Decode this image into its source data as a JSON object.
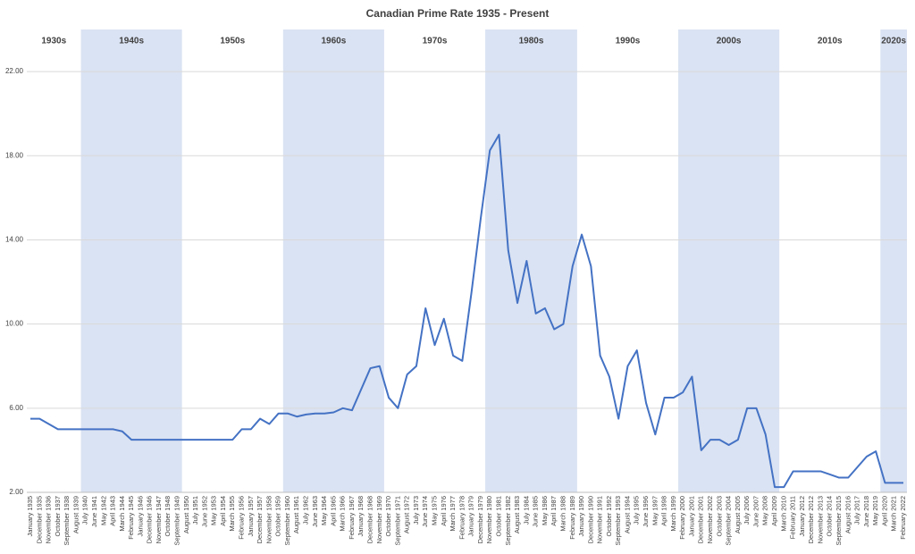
{
  "chart_data": {
    "type": "line",
    "title": "Canadian Prime Rate 1935 - Present",
    "categories": [
      "January 1935",
      "December 1935",
      "November 1936",
      "October 1937",
      "September 1938",
      "August 1939",
      "July 1940",
      "June 1941",
      "May 1942",
      "April 1943",
      "March 1944",
      "February 1945",
      "January 1946",
      "December 1946",
      "November 1947",
      "October 1948",
      "September 1949",
      "August 1950",
      "July 1951",
      "June 1952",
      "May 1953",
      "April 1954",
      "March 1955",
      "February 1956",
      "January 1957",
      "December 1957",
      "November 1958",
      "October 1959",
      "September 1960",
      "August 1961",
      "July 1962",
      "June 1963",
      "May 1964",
      "April 1965",
      "March 1966",
      "February 1967",
      "January 1968",
      "December 1968",
      "November 1969",
      "October 1970",
      "September 1971",
      "August 1972",
      "July 1973",
      "June 1974",
      "May 1975",
      "April 1976",
      "March 1977",
      "February 1978",
      "January 1979",
      "December 1979",
      "November 1980",
      "October 1981",
      "September 1982",
      "August 1983",
      "July 1984",
      "June 1985",
      "May 1986",
      "April 1987",
      "March 1988",
      "February 1989",
      "January 1990",
      "December 1990",
      "November 1991",
      "October 1992",
      "September 1993",
      "August 1994",
      "July 1995",
      "June 1996",
      "May 1997",
      "April 1998",
      "March 1999",
      "February 2000",
      "January 2001",
      "December 2001",
      "November 2002",
      "October 2003",
      "September 2004",
      "August 2005",
      "July 2006",
      "June 2007",
      "May 2008",
      "April 2009",
      "March 2010",
      "February 2011",
      "January 2012",
      "December 2012",
      "November 2013",
      "October 2014",
      "September 2015",
      "August 2016",
      "July 2017",
      "June 2018",
      "May 2019",
      "April 2020",
      "March 2021",
      "February 2022"
    ],
    "series": [
      {
        "name": "Prime Rate",
        "color": "#4472c4",
        "values": [
          5.5,
          5.5,
          5.25,
          5.0,
          5.0,
          5.0,
          5.0,
          5.0,
          5.0,
          5.0,
          4.9,
          4.5,
          4.5,
          4.5,
          4.5,
          4.5,
          4.5,
          4.5,
          4.5,
          4.5,
          4.5,
          4.5,
          4.5,
          5.0,
          5.0,
          5.5,
          5.25,
          5.75,
          5.75,
          5.6,
          5.7,
          5.75,
          5.75,
          5.8,
          6.0,
          5.9,
          6.9,
          7.9,
          8.0,
          6.5,
          6.0,
          7.6,
          8.0,
          10.75,
          9.0,
          10.25,
          8.5,
          8.25,
          11.5,
          15.0,
          18.25,
          19.0,
          13.5,
          11.0,
          13.0,
          10.5,
          10.75,
          9.75,
          10.0,
          12.75,
          14.25,
          12.75,
          8.5,
          7.5,
          5.5,
          8.0,
          8.75,
          6.25,
          4.75,
          6.5,
          6.5,
          6.75,
          7.5,
          4.0,
          4.5,
          4.5,
          4.25,
          4.5,
          6.0,
          6.0,
          4.75,
          2.25,
          2.25,
          3.0,
          3.0,
          3.0,
          3.0,
          2.85,
          2.7,
          2.7,
          3.2,
          3.7,
          3.95,
          2.45,
          2.45,
          2.45
        ]
      }
    ],
    "decades": [
      {
        "label": "1930s",
        "shaded": false
      },
      {
        "label": "1940s",
        "shaded": true
      },
      {
        "label": "1950s",
        "shaded": false
      },
      {
        "label": "1960s",
        "shaded": true
      },
      {
        "label": "1970s",
        "shaded": false
      },
      {
        "label": "1980s",
        "shaded": true
      },
      {
        "label": "1990s",
        "shaded": false
      },
      {
        "label": "2000s",
        "shaded": true
      },
      {
        "label": "2010s",
        "shaded": false
      },
      {
        "label": "2020s",
        "shaded": true
      }
    ],
    "ylim": [
      2,
      24
    ],
    "yticks": [
      {
        "value": 2,
        "label": "2.00"
      },
      {
        "value": 6,
        "label": "6.00"
      },
      {
        "value": 10,
        "label": "10.00"
      },
      {
        "value": 14,
        "label": "14.00"
      },
      {
        "value": 18,
        "label": "18.00"
      },
      {
        "value": 22,
        "label": "22.00"
      }
    ],
    "grid": true
  }
}
